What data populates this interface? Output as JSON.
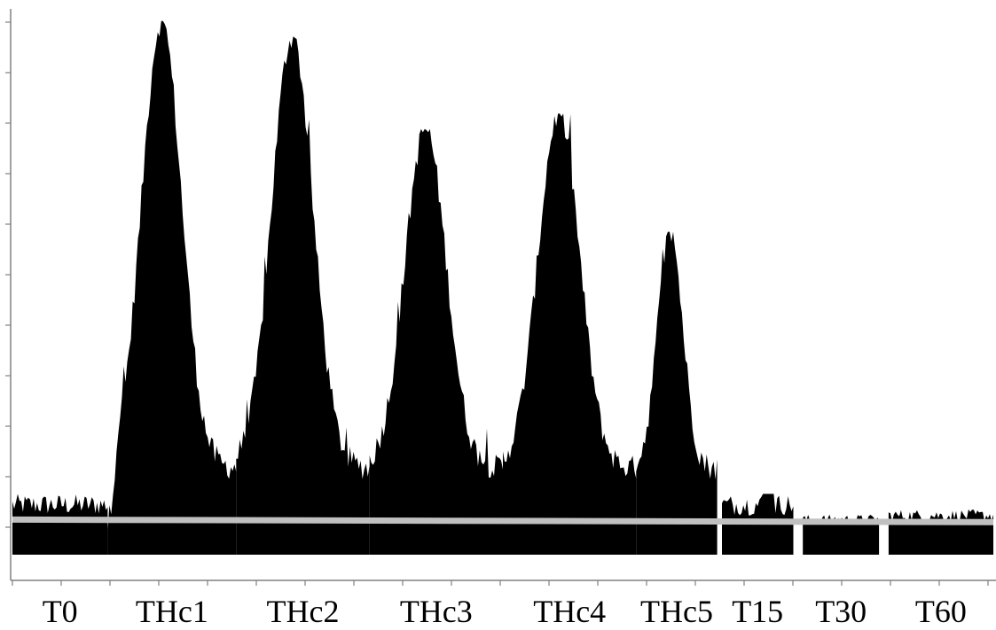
{
  "chart_data": {
    "type": "area",
    "title": "",
    "xlabel": "",
    "ylabel": "",
    "y_tick_labels_shown": false,
    "ylim": [
      0,
      10
    ],
    "colors": {
      "signal": "#000000",
      "baseline": "#c0c0c0",
      "axis": "#808080"
    },
    "categories": [
      {
        "label": "T0",
        "start": 0,
        "end": 1,
        "peak": 0.7
      },
      {
        "label": "THc1",
        "start": 1,
        "end": 2.35,
        "peak": 9.9
      },
      {
        "label": "THc2",
        "start": 2.35,
        "end": 3.75,
        "peak": 9.6
      },
      {
        "label": "THc3",
        "start": 3.75,
        "end": 5.15,
        "peak": 7.8
      },
      {
        "label": "THc4",
        "start": 5.15,
        "end": 6.55,
        "peak": 8.1
      },
      {
        "label": "THc5",
        "start": 6.55,
        "end": 7.4,
        "peak": 5.8
      },
      {
        "label": "T15",
        "start": 7.45,
        "end": 8.2,
        "peak": 0.7
      },
      {
        "label": "T30",
        "start": 8.3,
        "end": 9.1,
        "peak": 0.3
      },
      {
        "label": "T60",
        "start": 9.2,
        "end": 10.3,
        "peak": 0.4
      }
    ],
    "baseline_level": 0.0,
    "baseline_line": {
      "start": 0.0,
      "end": 10.3,
      "value_start": 0.2,
      "value_end": 0.15
    }
  }
}
